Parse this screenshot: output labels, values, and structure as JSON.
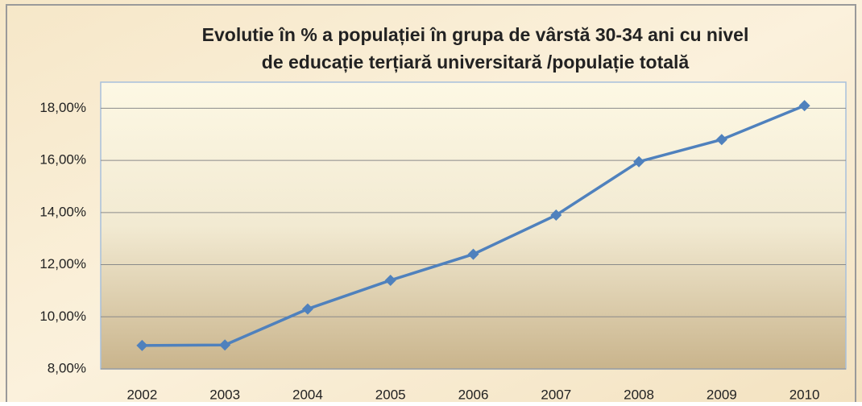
{
  "chart_data": {
    "type": "line",
    "title": [
      "Evolutie în % a populației în grupa de vârstă  30-34 ani cu nivel",
      "de educație terțiară universitară /populație totală"
    ],
    "categories": [
      "2002",
      "2003",
      "2004",
      "2005",
      "2006",
      "2007",
      "2008",
      "2009",
      "2010"
    ],
    "series": [
      {
        "color": "#4f81bd",
        "values": [
          8.9,
          8.92,
          10.3,
          11.4,
          12.4,
          13.9,
          15.95,
          16.8,
          18.1
        ]
      }
    ],
    "ylim": [
      8,
      19
    ],
    "yticks": [
      {
        "value": 8,
        "label": "8,00%"
      },
      {
        "value": 10,
        "label": "10,00%"
      },
      {
        "value": 12,
        "label": "12,00%"
      },
      {
        "value": 14,
        "label": "14,00%"
      },
      {
        "value": 16,
        "label": "16,00%"
      },
      {
        "value": 18,
        "label": "18,00%"
      }
    ],
    "grid": true
  }
}
